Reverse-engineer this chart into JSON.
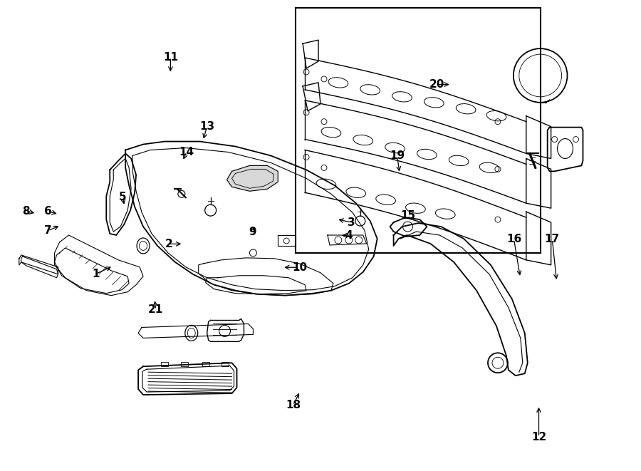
{
  "bg_color": "#ffffff",
  "line_color": "#000000",
  "fig_width": 9.0,
  "fig_height": 6.61,
  "dpi": 100,
  "label_info": {
    "1": {
      "txt": [
        0.148,
        0.582
      ],
      "arr": [
        0.175,
        0.565
      ]
    },
    "2": {
      "txt": [
        0.262,
        0.518
      ],
      "arr": [
        0.285,
        0.518
      ]
    },
    "3": {
      "txt": [
        0.548,
        0.472
      ],
      "arr": [
        0.525,
        0.465
      ]
    },
    "4": {
      "txt": [
        0.544,
        0.5
      ],
      "arr": [
        0.53,
        0.5
      ]
    },
    "5": {
      "txt": [
        0.19,
        0.418
      ],
      "arr": [
        0.193,
        0.438
      ]
    },
    "6": {
      "txt": [
        0.073,
        0.448
      ],
      "arr": [
        0.09,
        0.455
      ]
    },
    "7": {
      "txt": [
        0.073,
        0.49
      ],
      "arr": [
        0.093,
        0.478
      ]
    },
    "8": {
      "txt": [
        0.038,
        0.448
      ],
      "arr": [
        0.055,
        0.453
      ]
    },
    "9": {
      "txt": [
        0.393,
        0.492
      ],
      "arr": [
        0.397,
        0.478
      ]
    },
    "10": {
      "txt": [
        0.467,
        0.568
      ],
      "arr": [
        0.44,
        0.568
      ]
    },
    "11": {
      "txt": [
        0.265,
        0.12
      ],
      "arr": [
        0.265,
        0.155
      ]
    },
    "12": {
      "txt": [
        0.842,
        0.93
      ],
      "arr": [
        0.842,
        0.862
      ]
    },
    "13": {
      "txt": [
        0.322,
        0.268
      ],
      "arr": [
        0.316,
        0.298
      ]
    },
    "14": {
      "txt": [
        0.29,
        0.322
      ],
      "arr": [
        0.284,
        0.342
      ]
    },
    "15": {
      "txt": [
        0.637,
        0.458
      ],
      "arr": null
    },
    "16": {
      "txt": [
        0.803,
        0.508
      ],
      "arr": [
        0.813,
        0.59
      ]
    },
    "17": {
      "txt": [
        0.863,
        0.508
      ],
      "arr": [
        0.87,
        0.598
      ]
    },
    "18": {
      "txt": [
        0.457,
        0.862
      ],
      "arr": [
        0.468,
        0.832
      ]
    },
    "19": {
      "txt": [
        0.62,
        0.33
      ],
      "arr": [
        0.624,
        0.368
      ]
    },
    "20": {
      "txt": [
        0.682,
        0.178
      ],
      "arr": [
        0.705,
        0.178
      ]
    },
    "21": {
      "txt": [
        0.242,
        0.658
      ],
      "arr": [
        0.24,
        0.635
      ]
    }
  }
}
